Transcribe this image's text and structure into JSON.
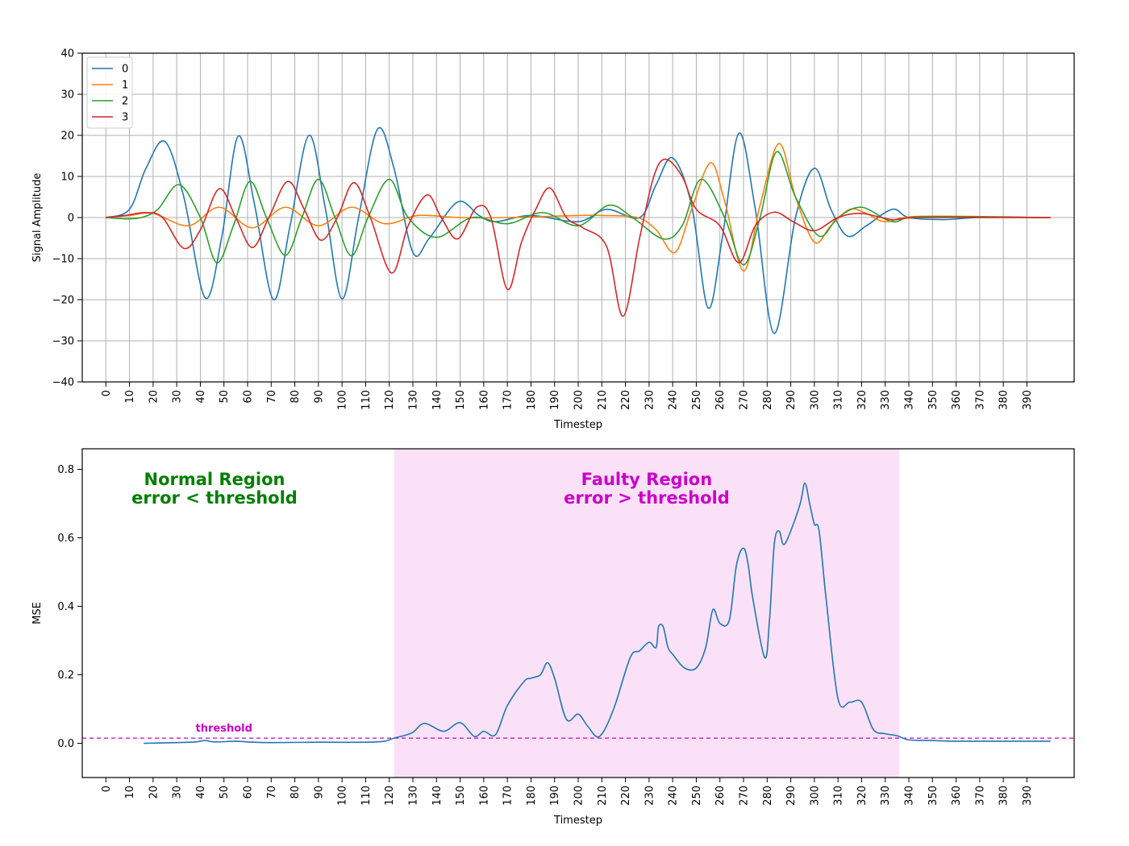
{
  "chart_data": [
    {
      "type": "line",
      "xlabel": "Timestep",
      "ylabel": "Signal Amplitude",
      "ylim": [
        -40,
        40
      ],
      "yticks": [
        -40,
        -30,
        -20,
        -10,
        0,
        10,
        20,
        30,
        40
      ],
      "ytick_labels": [
        "−40",
        "−30",
        "−20",
        "−10",
        "0",
        "10",
        "20",
        "30",
        "40"
      ],
      "xlim": [
        -10,
        410
      ],
      "xticks": [
        0,
        10,
        20,
        30,
        40,
        50,
        60,
        70,
        80,
        90,
        100,
        110,
        120,
        130,
        140,
        150,
        160,
        170,
        180,
        190,
        200,
        210,
        220,
        230,
        240,
        250,
        260,
        270,
        280,
        290,
        300,
        310,
        320,
        330,
        340,
        350,
        360,
        370,
        380,
        390
      ],
      "xtick_labels": [
        "0",
        "10",
        "20",
        "30",
        "40",
        "50",
        "60",
        "70",
        "80",
        "90",
        "100",
        "110",
        "120",
        "130",
        "140",
        "150",
        "160",
        "170",
        "180",
        "190",
        "200",
        "210",
        "220",
        "230",
        "240",
        "250",
        "260",
        "270",
        "280",
        "290",
        "300",
        "310",
        "320",
        "330",
        "340",
        "350",
        "360",
        "370",
        "380",
        "390"
      ],
      "grid": true,
      "legend_position": "top-left",
      "series": [
        {
          "name": "0",
          "color": "#1f77b4",
          "x": [
            0,
            10,
            17,
            25,
            33,
            42,
            49,
            56,
            63,
            71,
            78,
            86,
            93,
            100,
            107,
            115,
            122,
            130,
            137,
            149,
            158,
            165,
            180,
            200,
            212,
            226,
            233,
            240,
            248,
            255,
            261,
            268,
            275,
            283,
            292,
            300,
            307,
            314,
            322,
            333,
            340,
            355,
            370,
            400
          ],
          "y": [
            0,
            2,
            12,
            18.5,
            5,
            -19.5,
            -5,
            19.8,
            3,
            -20,
            -2,
            20,
            2,
            -19.8,
            0,
            21.5,
            12,
            -8.5,
            -5,
            3.8,
            0.5,
            -1,
            0.5,
            -1,
            2,
            0,
            8,
            14.5,
            3,
            -22,
            -5,
            20.5,
            2,
            -28.2,
            0,
            12,
            2,
            -4.5,
            -2,
            2,
            0,
            -0.5,
            0,
            0
          ]
        },
        {
          "name": "1",
          "color": "#ff7f0e",
          "x": [
            0,
            10,
            20,
            35,
            48,
            62,
            76,
            90,
            104,
            118,
            132,
            150,
            170,
            200,
            210,
            225,
            233,
            241,
            248,
            256,
            262,
            270,
            277,
            285,
            292,
            300,
            307,
            315,
            322,
            330,
            345,
            400
          ],
          "y": [
            0,
            0.5,
            1,
            -2,
            2.5,
            -2.5,
            2.5,
            -2,
            2.5,
            -1.5,
            0.5,
            0,
            0,
            0.5,
            0.5,
            0,
            -3,
            -8.5,
            2,
            13.3,
            4,
            -13,
            3,
            18,
            5,
            -6,
            -2,
            2,
            1,
            -1,
            0.3,
            0
          ]
        },
        {
          "name": "2",
          "color": "#2ca02c",
          "x": [
            0,
            8,
            15,
            22,
            31,
            40,
            47,
            54,
            61,
            68,
            76,
            83,
            90,
            97,
            104,
            111,
            120,
            128,
            140,
            155,
            170,
            185,
            200,
            213,
            223,
            236,
            244,
            252,
            262,
            270,
            277,
            284,
            292,
            302,
            310,
            320,
            333,
            345,
            400
          ],
          "y": [
            0,
            -0.3,
            0,
            2,
            8,
            0,
            -11,
            -2,
            8.8,
            0,
            -9.2,
            0,
            9.3,
            0,
            -9.3,
            0,
            9.3,
            0,
            -4.8,
            0,
            -1.5,
            1.2,
            -2,
            3,
            0,
            -5.2,
            -2,
            9.3,
            0,
            -11.5,
            0,
            16,
            5,
            -4.5,
            0,
            2.5,
            -1,
            0.2,
            0
          ]
        },
        {
          "name": "3",
          "color": "#d62728",
          "x": [
            0,
            8,
            17,
            24,
            33,
            40,
            48,
            55,
            62,
            69,
            77,
            84,
            91,
            98,
            105,
            112,
            121,
            128,
            136,
            142,
            149,
            157,
            163,
            170,
            176,
            182,
            188,
            195,
            202,
            212,
            219,
            226,
            232,
            237,
            244,
            250,
            260,
            268,
            275,
            283,
            291,
            300,
            310,
            320,
            333,
            345,
            400
          ],
          "y": [
            0,
            0.5,
            1.2,
            0,
            -7.5,
            -3,
            7,
            0,
            -7.3,
            0,
            8.8,
            2,
            -5.5,
            0,
            8.5,
            0,
            -13.5,
            -2,
            5.5,
            0,
            -5.2,
            2.5,
            0,
            -17.5,
            -6,
            2,
            7.2,
            0,
            -2.5,
            -7,
            -24,
            -5,
            10,
            14.2,
            10,
            2,
            -2,
            -11,
            -2,
            1.3,
            -1,
            -3.2,
            0,
            1,
            -0.5,
            0,
            0
          ]
        }
      ]
    },
    {
      "type": "line",
      "xlabel": "Timestep",
      "ylabel": "MSE",
      "ylim": [
        -0.1,
        0.86
      ],
      "yticks": [
        0.0,
        0.2,
        0.4,
        0.6,
        0.8
      ],
      "ytick_labels": [
        "0.0",
        "0.2",
        "0.4",
        "0.6",
        "0.8"
      ],
      "xlim": [
        -10,
        410
      ],
      "xticks": [
        0,
        10,
        20,
        30,
        40,
        50,
        60,
        70,
        80,
        90,
        100,
        110,
        120,
        130,
        140,
        150,
        160,
        170,
        180,
        190,
        200,
        210,
        220,
        230,
        240,
        250,
        260,
        270,
        280,
        290,
        300,
        310,
        320,
        330,
        340,
        350,
        360,
        370,
        380,
        390
      ],
      "xtick_labels": [
        "0",
        "10",
        "20",
        "30",
        "40",
        "50",
        "60",
        "70",
        "80",
        "90",
        "100",
        "110",
        "120",
        "130",
        "140",
        "150",
        "160",
        "170",
        "180",
        "190",
        "200",
        "210",
        "220",
        "230",
        "240",
        "250",
        "260",
        "270",
        "280",
        "290",
        "300",
        "310",
        "320",
        "330",
        "340",
        "350",
        "360",
        "370",
        "380",
        "390"
      ],
      "grid": false,
      "threshold": 0.015,
      "threshold_label": "threshold",
      "threshold_color": "#cc00cc",
      "faulty_region": [
        122,
        336
      ],
      "normal_region_label": [
        "Normal Region",
        "error < threshold"
      ],
      "faulty_region_label": [
        "Faulty Region",
        "error > threshold"
      ],
      "series": [
        {
          "name": "MSE",
          "color": "#1f77b4",
          "x": [
            16,
            30,
            38,
            42,
            46,
            55,
            60,
            70,
            90,
            110,
            118,
            122,
            126,
            130,
            135,
            143,
            150,
            156,
            160,
            165,
            170,
            177,
            180,
            184,
            187,
            190,
            195,
            200,
            204,
            209,
            215,
            222,
            226,
            230,
            233,
            234,
            236,
            238,
            240,
            245,
            250,
            254,
            257,
            260,
            264,
            267,
            270,
            272,
            274,
            279,
            281,
            283,
            285,
            287,
            290,
            294,
            296,
            298,
            300,
            302,
            305,
            310,
            315,
            320,
            325,
            330,
            335,
            340,
            350,
            360,
            380,
            400
          ],
          "y": [
            0.0,
            0.002,
            0.004,
            0.008,
            0.004,
            0.006,
            0.004,
            0.002,
            0.003,
            0.003,
            0.006,
            0.015,
            0.022,
            0.032,
            0.058,
            0.035,
            0.06,
            0.02,
            0.035,
            0.025,
            0.11,
            0.18,
            0.19,
            0.2,
            0.235,
            0.19,
            0.07,
            0.085,
            0.05,
            0.02,
            0.1,
            0.25,
            0.27,
            0.295,
            0.28,
            0.34,
            0.34,
            0.28,
            0.26,
            0.22,
            0.22,
            0.28,
            0.39,
            0.35,
            0.36,
            0.52,
            0.57,
            0.52,
            0.42,
            0.25,
            0.36,
            0.58,
            0.62,
            0.58,
            0.62,
            0.7,
            0.76,
            0.7,
            0.64,
            0.62,
            0.42,
            0.13,
            0.12,
            0.12,
            0.04,
            0.028,
            0.022,
            0.01,
            0.008,
            0.006,
            0.006,
            0.006
          ]
        }
      ]
    }
  ]
}
